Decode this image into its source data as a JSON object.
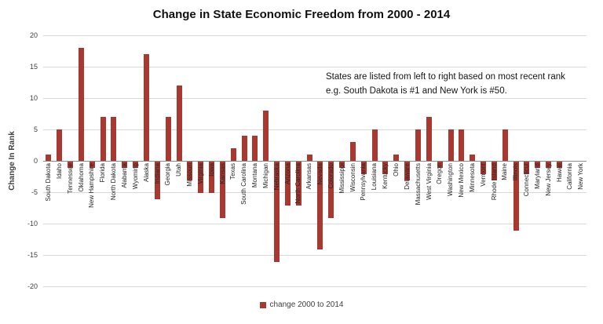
{
  "annotation": {
    "line1": "States are listed from left to right based on most recent rank",
    "line2": "e.g. South Dakota is #1 and New York is #50."
  },
  "chart_data": {
    "type": "bar",
    "title": "Change in State Economic Freedom from 2000 - 2014",
    "ylabel": "Change In Rank",
    "xlabel": "",
    "ylim": [
      -20,
      20
    ],
    "ytick_interval": 5,
    "grid": true,
    "legend_position": "bottom",
    "bar_color": "#a93830",
    "series_name": "change 2000 to 2014",
    "categories": [
      "South Dakota",
      "Idaho",
      "Tennessee",
      "Oklahoma",
      "New Hampshire",
      "Florida",
      "North Dakota",
      "Alabama",
      "Wyoming",
      "Alaska",
      "Indiana",
      "Georgia",
      "Utah",
      "Missouri",
      "Virginia",
      "Iowa",
      "Kansas",
      "Texas",
      "South Carolina",
      "Montana",
      "Michigan",
      "Nebraska",
      "Arizona",
      "North Carolina",
      "Arkansas",
      "Nevada",
      "Colorado",
      "Mississippi",
      "Wisconsin",
      "Pennsylvania",
      "Louisiana",
      "Kentucky",
      "Ohio",
      "Delaware",
      "Massachusetts",
      "West Virginia",
      "Oregon",
      "Washington",
      "New Mexico",
      "Minnesota",
      "Vermont",
      "Rhode Island",
      "Maine",
      "Illinois",
      "Connecticut",
      "Maryland",
      "New Jersey",
      "Hawaii",
      "California",
      "New York"
    ],
    "values": [
      1,
      5,
      -1,
      18,
      -1,
      7,
      7,
      -1,
      -1,
      17,
      -6,
      7,
      12,
      -3,
      -5,
      -5,
      -9,
      2,
      4,
      4,
      8,
      -16,
      -7,
      -7,
      1,
      -14,
      -9,
      -1,
      3,
      -2,
      5,
      -2,
      1,
      -3,
      5,
      7,
      -1,
      5,
      5,
      1,
      -2,
      -3,
      5,
      -11,
      -2,
      -1,
      -1,
      -1,
      0,
      0
    ]
  }
}
